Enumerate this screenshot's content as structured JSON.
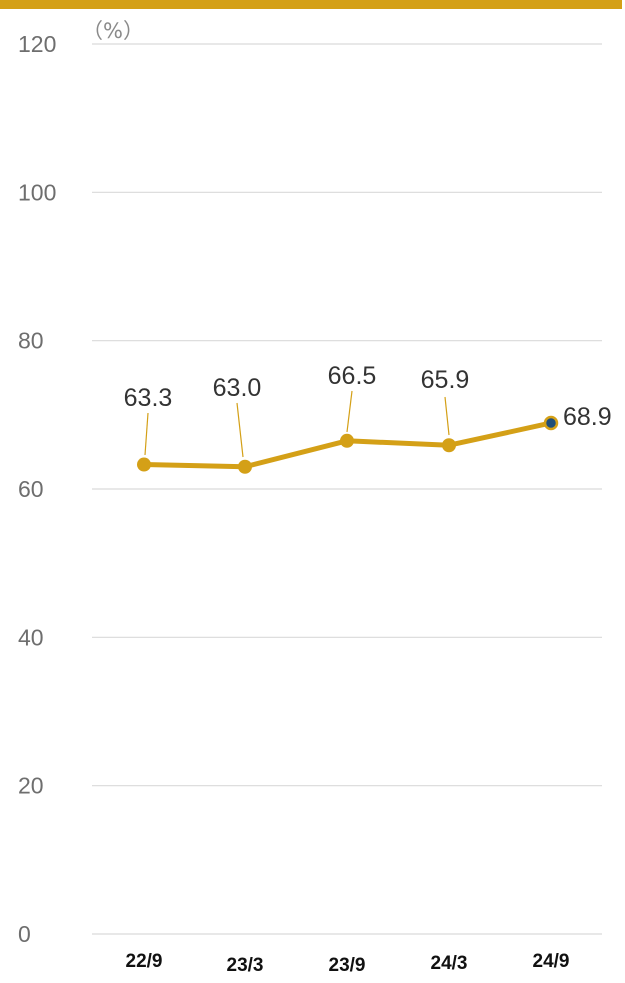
{
  "chart_data": {
    "type": "line",
    "unit": "（%）",
    "categories": [
      "22/9",
      "23/3",
      "23/9",
      "24/3",
      "24/9"
    ],
    "series": [
      {
        "values": [
          63.3,
          63.0,
          66.5,
          65.9,
          68.9
        ],
        "labels": [
          "63.3",
          "63.0",
          "66.5",
          "65.9",
          "68.9"
        ],
        "color": "#d4a017"
      }
    ],
    "ylim": [
      0,
      120
    ],
    "yticks": [
      "0",
      "20",
      "40",
      "60",
      "80",
      "100",
      "120"
    ],
    "grid": true,
    "legend": "none",
    "colors": {
      "accent": "#d4a017",
      "last_point": "#1f4e79",
      "gridline": "#d9d9d9"
    }
  }
}
